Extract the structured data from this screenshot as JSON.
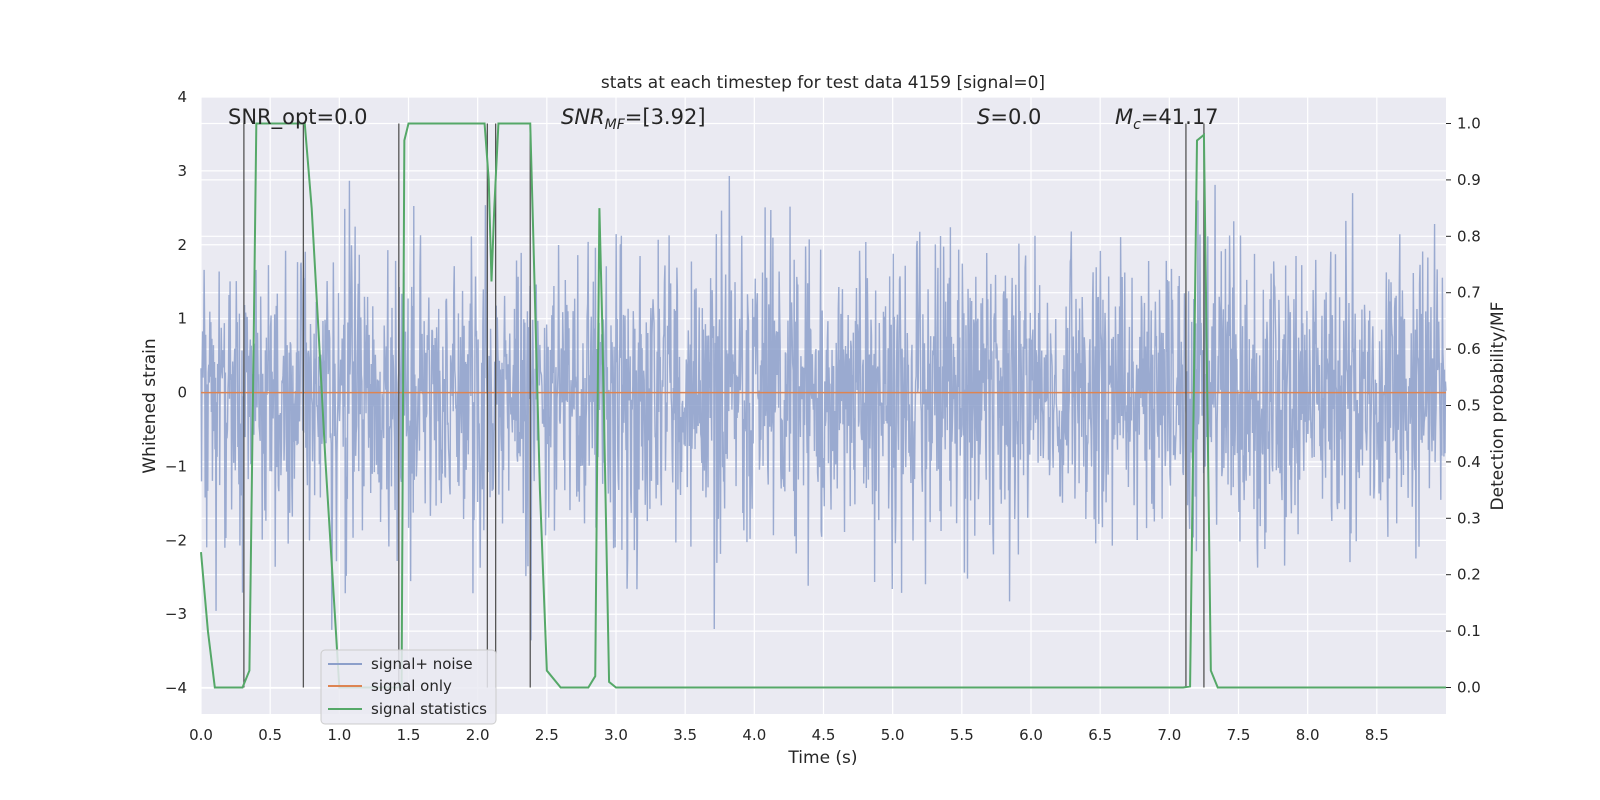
{
  "chart_data": {
    "type": "line",
    "title": "stats at each timestep for test data 4159 [signal=0]",
    "xlabel": "Time (s)",
    "ylabel_left": "Whitened strain",
    "ylabel_right": "Detection probability/MF",
    "xlim": [
      0.0,
      9.0
    ],
    "ylim_left": [
      -4.35,
      4.0
    ],
    "ylim_right": [
      -0.047,
      1.047
    ],
    "x_ticks": [
      "0.0",
      "0.5",
      "1.0",
      "1.5",
      "2.0",
      "2.5",
      "3.0",
      "3.5",
      "4.0",
      "4.5",
      "5.0",
      "5.5",
      "6.0",
      "6.5",
      "7.0",
      "7.5",
      "8.0",
      "8.5"
    ],
    "y_ticks_left": [
      "4",
      "3",
      "2",
      "1",
      "0",
      "−1",
      "−2",
      "−3",
      "−4"
    ],
    "y_ticks_right": [
      "1.0",
      "0.9",
      "0.8",
      "0.7",
      "0.6",
      "0.5",
      "0.4",
      "0.3",
      "0.2",
      "0.1",
      "0.0"
    ],
    "grid": true,
    "legend_position": "lower-left",
    "annotations": {
      "snr_opt": "SNR_opt=0.0",
      "snr_mf_prefix": "SNR",
      "snr_mf_sub": "MF",
      "snr_mf_value": "=[3.92]",
      "s_prefix": "S",
      "s_value": "=0.0",
      "mc_prefix": "M",
      "mc_sub": "c",
      "mc_value": "=41.17"
    },
    "series": [
      {
        "name": "signal+ noise",
        "color": "#8c9fca",
        "description": "whitened noise, roughly uniform amplitude about ±2.5 with spikes to ±3.6",
        "noise_seed": 4159
      },
      {
        "name": "signal only",
        "color": "#dd8452",
        "values": "zero everywhere"
      },
      {
        "name": "signal statistics",
        "color": "#55a868",
        "x": [
          0.0,
          0.05,
          0.1,
          0.2,
          0.25,
          0.3,
          0.35,
          0.38,
          0.4,
          0.45,
          0.5,
          0.55,
          0.6,
          0.65,
          0.7,
          0.72,
          0.75,
          0.8,
          0.85,
          0.9,
          0.95,
          1.0,
          1.05,
          1.1,
          1.2,
          1.3,
          1.4,
          1.43,
          1.45,
          1.47,
          1.5,
          1.6,
          1.7,
          1.8,
          1.9,
          2.0,
          2.05,
          2.08,
          2.1,
          2.12,
          2.15,
          2.2,
          2.25,
          2.3,
          2.35,
          2.38,
          2.4,
          2.45,
          2.5,
          2.6,
          2.7,
          2.75,
          2.8,
          2.85,
          2.88,
          2.9,
          2.95,
          3.0,
          3.1,
          3.2,
          3.3,
          3.35,
          3.4,
          3.5,
          4.0,
          4.2,
          5.0,
          6.0,
          6.5,
          7.0,
          7.05,
          7.1,
          7.15,
          7.2,
          7.25,
          7.3,
          7.35,
          7.4,
          7.5,
          8.0,
          8.5,
          9.0
        ],
        "values": [
          0.24,
          0.1,
          0.0,
          0.0,
          0.0,
          0.0,
          0.03,
          0.6,
          1.0,
          1.0,
          1.0,
          1.0,
          1.0,
          1.0,
          1.0,
          1.0,
          1.0,
          0.85,
          0.63,
          0.4,
          0.2,
          0.0,
          0.0,
          0.0,
          0.0,
          0.0,
          0.0,
          0.0,
          0.0,
          0.97,
          1.0,
          1.0,
          1.0,
          1.0,
          1.0,
          1.0,
          1.0,
          0.9,
          0.72,
          0.85,
          1.0,
          1.0,
          1.0,
          1.0,
          1.0,
          1.0,
          0.82,
          0.35,
          0.03,
          0.0,
          0.0,
          0.0,
          0.0,
          0.02,
          0.85,
          0.65,
          0.01,
          0.0,
          0.0,
          0.0,
          0.0,
          0.0,
          0.0,
          0.0,
          0.0,
          0.0,
          0.0,
          0.0,
          0.0,
          0.0,
          0.0,
          0.0,
          0.002,
          0.97,
          0.98,
          0.03,
          0.0,
          0.0,
          0.0,
          0.0,
          0.0,
          0.0
        ]
      }
    ],
    "vlines": [
      0.31,
      0.74,
      1.43,
      2.07,
      2.13,
      2.38,
      7.12,
      7.25
    ]
  }
}
